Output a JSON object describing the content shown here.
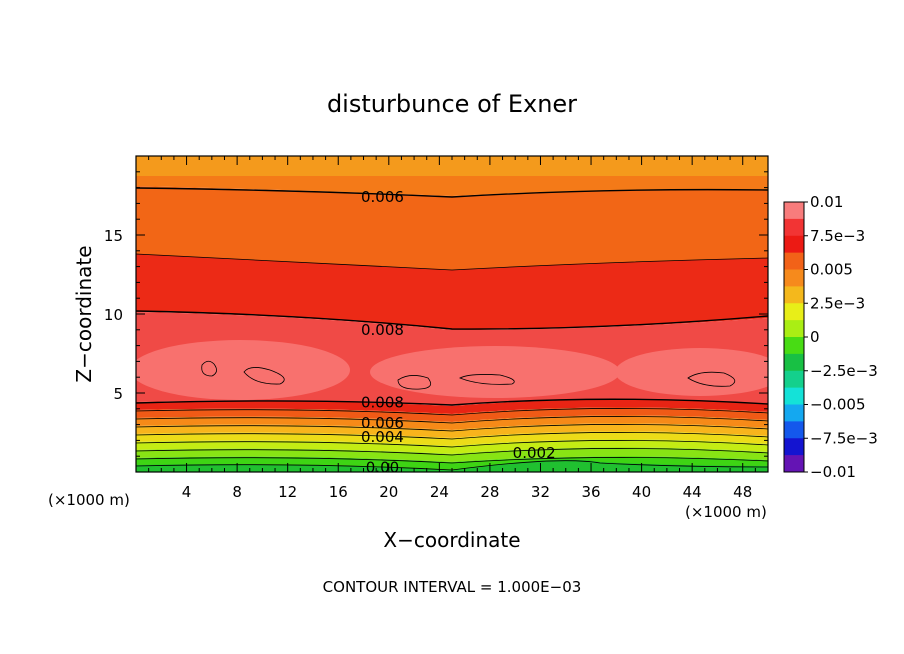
{
  "chart_data": {
    "type": "heatmap",
    "title": "disturbunce of Exner",
    "xlabel": "X−coordinate",
    "ylabel": "Z−coordinate",
    "x_unit": "(×1000 m)",
    "y_unit": "(×1000 m)",
    "xlim": [
      0,
      50
    ],
    "ylim": [
      0,
      20
    ],
    "x_ticks": [
      "4",
      "8",
      "12",
      "16",
      "20",
      "24",
      "28",
      "32",
      "36",
      "40",
      "44",
      "48"
    ],
    "x_tick_values": [
      4,
      8,
      12,
      16,
      20,
      24,
      28,
      32,
      36,
      40,
      44,
      48
    ],
    "y_ticks": [
      "5",
      "10",
      "15"
    ],
    "y_tick_values": [
      5,
      10,
      15
    ],
    "colorbar_labels": [
      "0.01",
      "7.5e−3",
      "0.005",
      "2.5e−3",
      "0",
      "−2.5e−3",
      "−0.005",
      "−7.5e−3",
      "−0.01"
    ],
    "colorbar_range": [
      -0.01,
      0.01
    ],
    "contour_labels": [
      {
        "text": "0.006",
        "x": 19.5,
        "z": 17.4
      },
      {
        "text": "0.008",
        "x": 19.5,
        "z": 9.0
      },
      {
        "text": "0.008",
        "x": 19.5,
        "z": 4.4
      },
      {
        "text": "0.006",
        "x": 19.5,
        "z": 3.1
      },
      {
        "text": "0.004",
        "x": 19.5,
        "z": 2.2
      },
      {
        "text": "0.002",
        "x": 31.5,
        "z": 1.2
      },
      {
        "text": "0.00",
        "x": 19.5,
        "z": 0.3
      }
    ],
    "contour_interval_text": "CONTOUR INTERVAL = 1.000E−03"
  }
}
